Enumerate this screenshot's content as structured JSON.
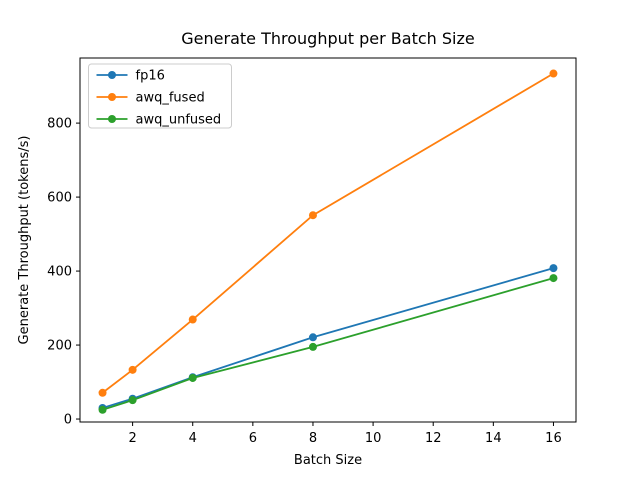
{
  "chart_data": {
    "type": "line",
    "title": "Generate Throughput per Batch Size",
    "xlabel": "Batch Size",
    "ylabel": "Generate Throughput (tokens/s)",
    "x": [
      1,
      2,
      4,
      8,
      16
    ],
    "series": [
      {
        "name": "fp16",
        "color": "#1f77b4",
        "values": [
          30,
          55,
          113,
          221,
          408
        ]
      },
      {
        "name": "awq_fused",
        "color": "#ff7f0e",
        "values": [
          71,
          133,
          269,
          551,
          934
        ]
      },
      {
        "name": "awq_unfused",
        "color": "#2ca02c",
        "values": [
          25,
          51,
          111,
          195,
          381
        ]
      }
    ],
    "x_ticks": [
      2,
      4,
      6,
      8,
      10,
      12,
      14,
      16
    ],
    "y_ticks": [
      0,
      200,
      400,
      600,
      800
    ],
    "xlim": [
      0.25,
      16.75
    ],
    "ylim": [
      -8,
      976
    ],
    "grid": false,
    "legend_position": "upper left",
    "marker": "circle",
    "line_style": "solid",
    "background": "#ffffff",
    "spine_color": "#000000",
    "legend_border_color": "#cccccc"
  }
}
